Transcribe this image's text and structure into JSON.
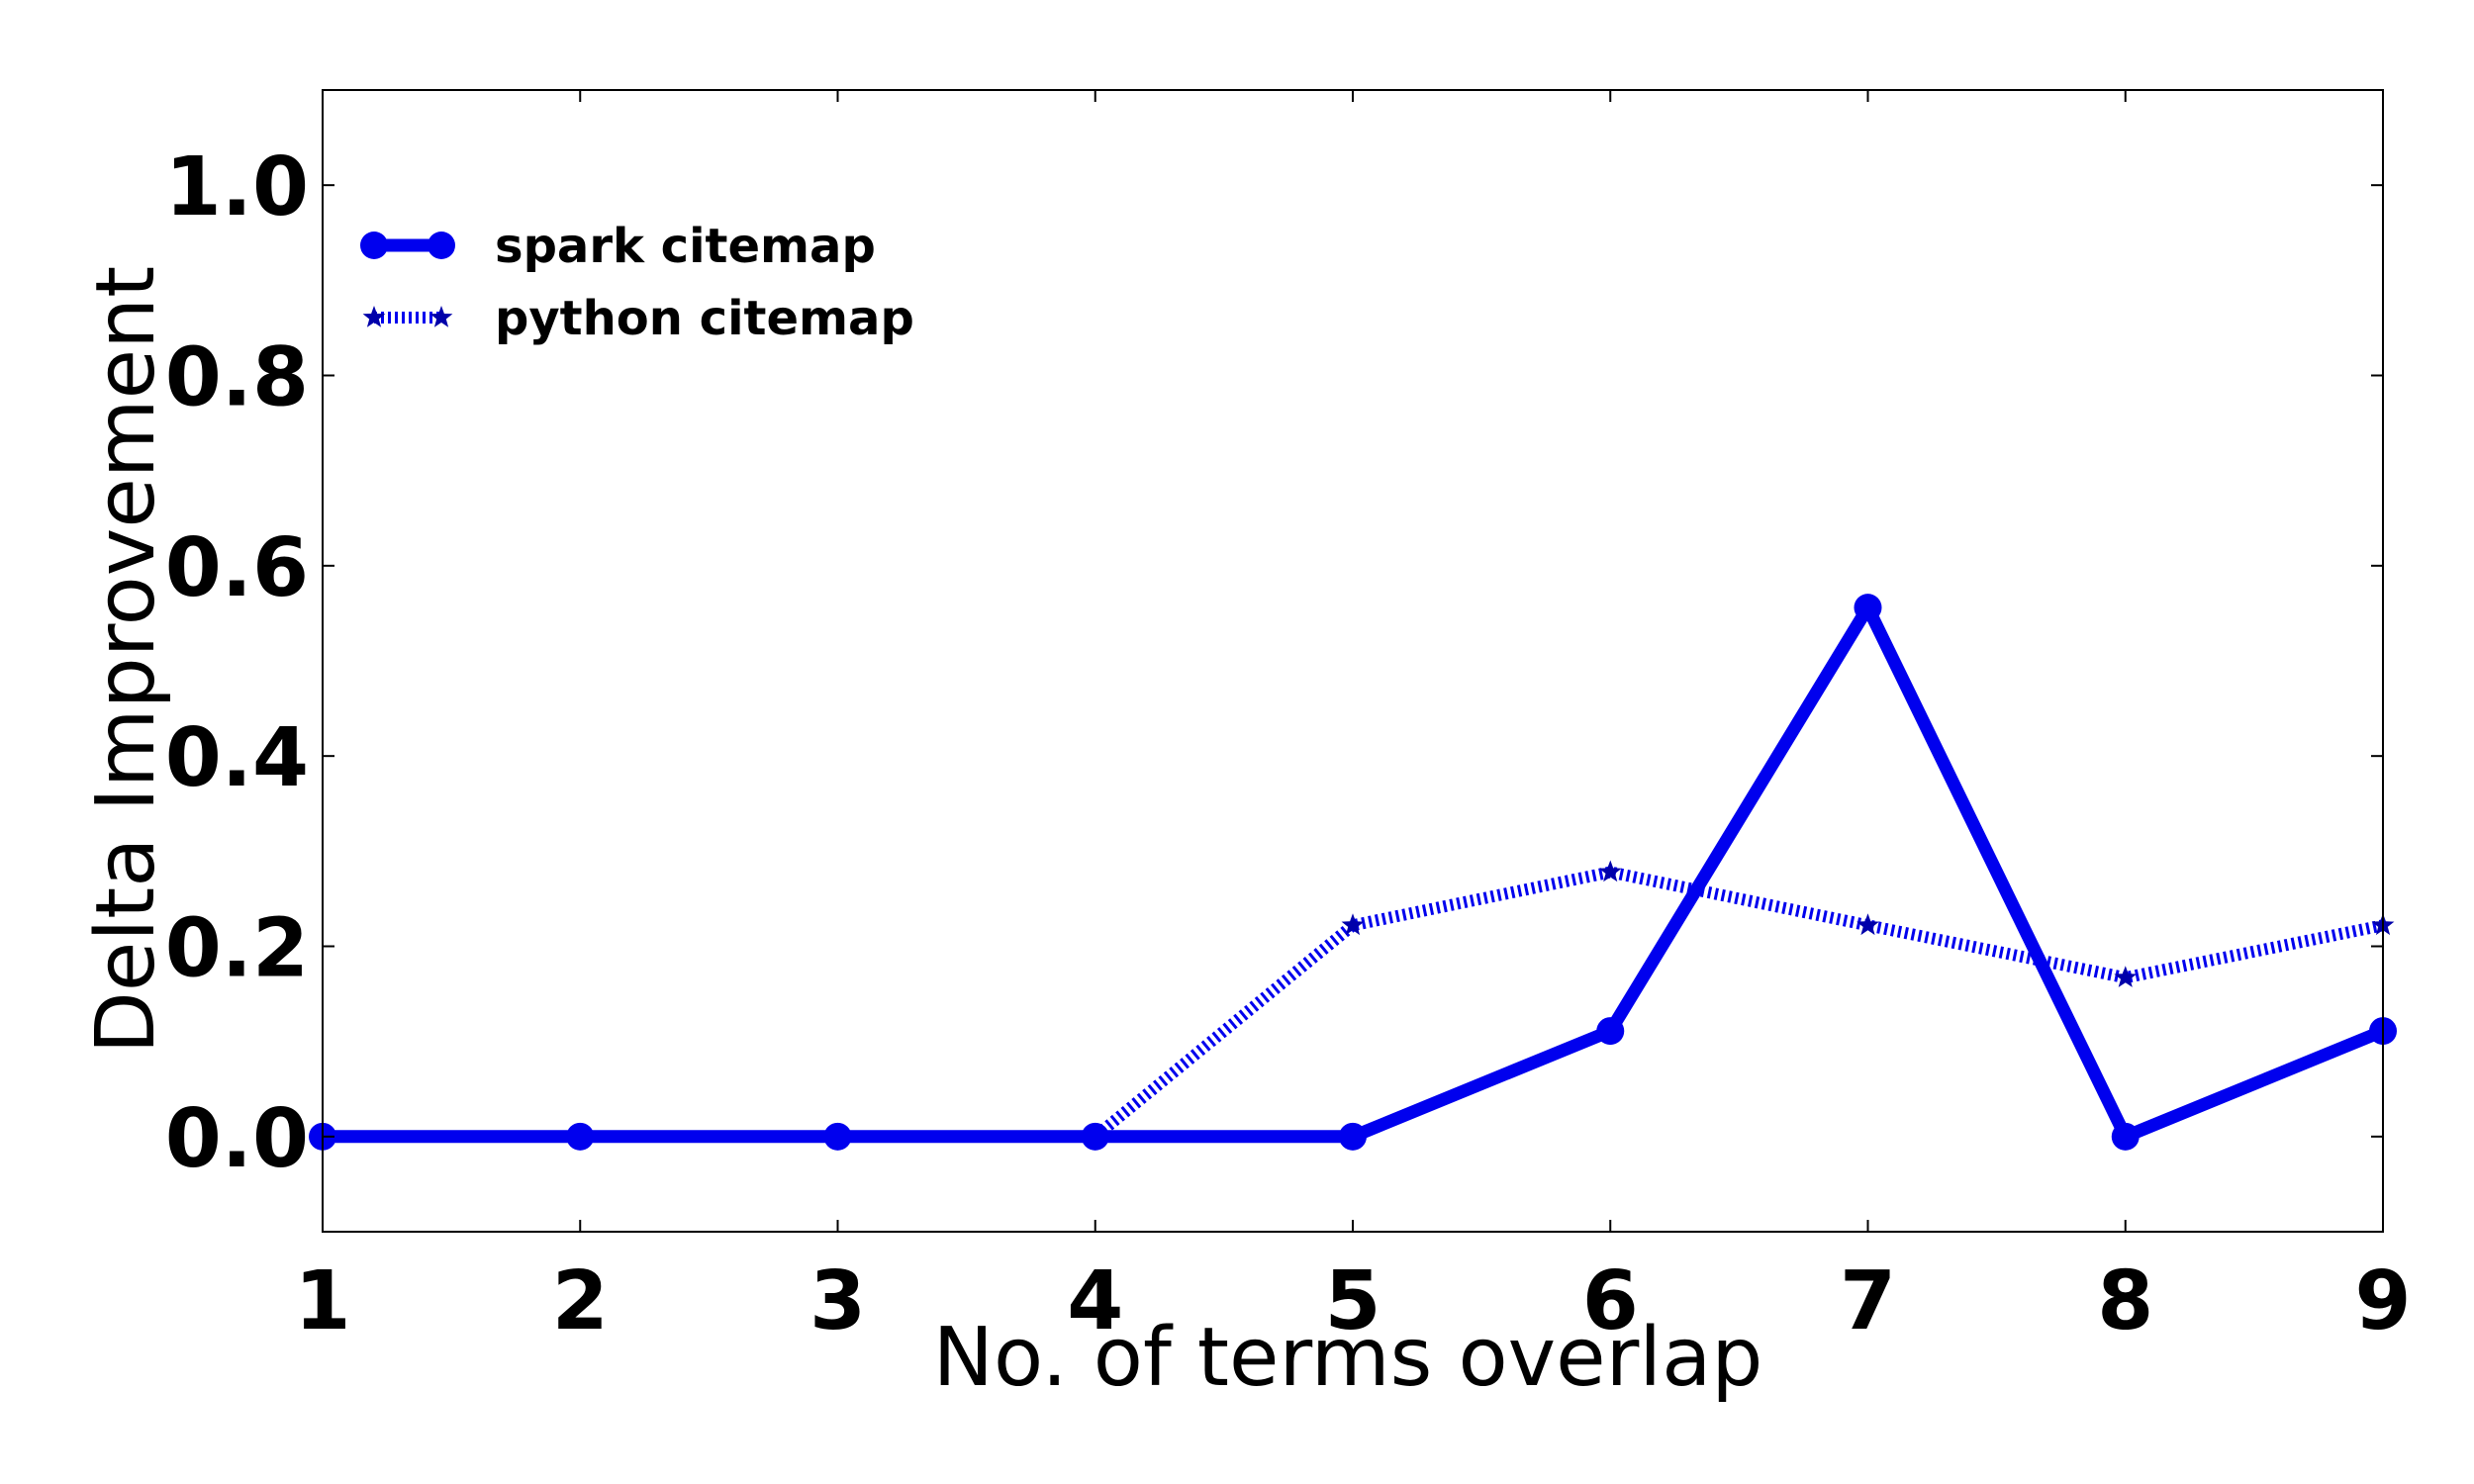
{
  "chart_data": {
    "type": "line",
    "title": "",
    "xlabel": "No. of terms overlap",
    "ylabel": "Delta Improvement",
    "x": [
      1,
      2,
      3,
      4,
      5,
      6,
      7,
      8,
      9
    ],
    "xlim": [
      1,
      9
    ],
    "ylim": [
      -0.1,
      1.1
    ],
    "xticks": [
      "1",
      "2",
      "3",
      "4",
      "5",
      "6",
      "7",
      "8",
      "9"
    ],
    "yticks": [
      "0.0",
      "0.2",
      "0.4",
      "0.6",
      "0.8",
      "1.0"
    ],
    "ytick_values": [
      0.0,
      0.2,
      0.4,
      0.6,
      0.8,
      1.0
    ],
    "grid": false,
    "legend_position": "upper-left",
    "series": [
      {
        "name": "spark citemap",
        "values": [
          0.0,
          0.0,
          0.0,
          0.0,
          0.0,
          0.111,
          0.556,
          0.0,
          0.111
        ],
        "color": "#0000ee",
        "line_style": "solid",
        "marker": "circle"
      },
      {
        "name": "python citemap",
        "values": [
          0.0,
          0.0,
          0.0,
          0.0,
          0.222,
          0.278,
          0.222,
          0.167,
          0.222
        ],
        "color": "#0000ee",
        "line_style": "dotted",
        "marker": "star"
      }
    ]
  }
}
